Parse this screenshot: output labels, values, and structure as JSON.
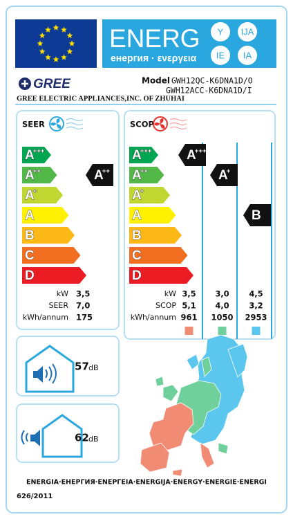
{
  "header": {
    "energ": "ENERG",
    "languages": "енергия · ενεργεια",
    "suffixes": [
      "Y",
      "IJA",
      "IE",
      "IA"
    ]
  },
  "supplier": {
    "brand": "GREE",
    "model_label": "Model",
    "models": [
      "GWH12QC-K6DNA1D/O",
      "GWH12ACC-K6DNA1D/I"
    ],
    "manufacturer": "GREE ELECTRIC APPLIANCES,INC. OF ZHUHAI"
  },
  "seer": {
    "title": "SEER",
    "classes": [
      {
        "letter": "A",
        "plus": "+++"
      },
      {
        "letter": "A",
        "plus": "++"
      },
      {
        "letter": "A",
        "plus": "+"
      },
      {
        "letter": "A",
        "plus": ""
      },
      {
        "letter": "B",
        "plus": ""
      },
      {
        "letter": "C",
        "plus": ""
      },
      {
        "letter": "D",
        "plus": ""
      }
    ],
    "rating": {
      "letter": "A",
      "plus": "++"
    },
    "rows": [
      {
        "label": "kW",
        "value": "3,5"
      },
      {
        "label": "SEER",
        "value": "7,0"
      },
      {
        "label": "kWh/annum",
        "value": "175"
      }
    ]
  },
  "scop": {
    "title": "SCOP",
    "classes": [
      {
        "letter": "A",
        "plus": "+++"
      },
      {
        "letter": "A",
        "plus": "++"
      },
      {
        "letter": "A",
        "plus": "+"
      },
      {
        "letter": "A",
        "plus": ""
      },
      {
        "letter": "B",
        "plus": ""
      },
      {
        "letter": "C",
        "plus": ""
      },
      {
        "letter": "D",
        "plus": ""
      }
    ],
    "row_labels": [
      "kW",
      "SCOP",
      "kWh/annum"
    ],
    "zones": [
      {
        "rating": {
          "letter": "A",
          "plus": "+++"
        },
        "color": "#f28b74",
        "values": [
          "3,5",
          "5,1",
          "961"
        ]
      },
      {
        "rating": {
          "letter": "A",
          "plus": "+"
        },
        "color": "#6fd09c",
        "values": [
          "3,0",
          "4,0",
          "1050"
        ]
      },
      {
        "rating": {
          "letter": "B",
          "plus": ""
        },
        "color": "#5bc6ee",
        "values": [
          "4,5",
          "3,2",
          "2953"
        ]
      }
    ]
  },
  "noise": [
    {
      "value": "57",
      "unit": "dB"
    },
    {
      "value": "62",
      "unit": "dB"
    }
  ],
  "footer": {
    "energy_words": "ENERGIA·ЕНЕРГИЯ·ΕΝΕΡΓΕΙΑ·ENERGIJA·ENERGY·ENERGIE·ENERGI",
    "regulation": "626/2011"
  }
}
